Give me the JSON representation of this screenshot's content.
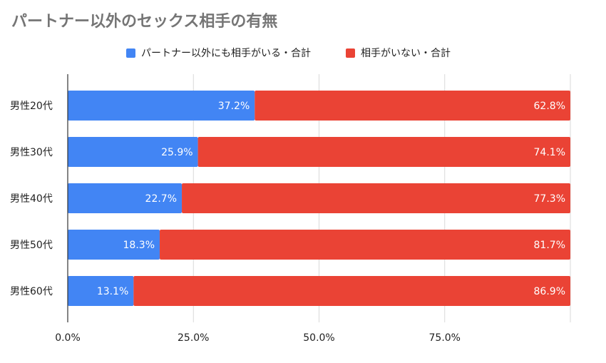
{
  "chart_data": {
    "type": "bar",
    "orientation": "horizontal",
    "stacked": true,
    "percent_stacked": true,
    "title": "パートナー以外のセックス相手の有無",
    "categories": [
      "男性20代",
      "男性30代",
      "男性40代",
      "男性50代",
      "男性60代"
    ],
    "series": [
      {
        "name": "パートナー以外にも相手がいる・合計",
        "color": "#4285f4",
        "values": [
          37.2,
          25.9,
          22.7,
          18.3,
          13.1
        ],
        "labels": [
          "37.2%",
          "25.9%",
          "22.7%",
          "18.3%",
          "13.1%"
        ]
      },
      {
        "name": "相手がいない・合計",
        "color": "#ea4335",
        "values": [
          62.8,
          74.1,
          77.3,
          81.7,
          86.9
        ],
        "labels": [
          "62.8%",
          "74.1%",
          "77.3%",
          "81.7%",
          "86.9%"
        ]
      }
    ],
    "xlim": [
      0,
      100
    ],
    "xticks": [
      0,
      25,
      50,
      75,
      100
    ],
    "xtick_labels": [
      "0.0%",
      "25.0%",
      "50.0%",
      "75.0%",
      ""
    ],
    "grid": true,
    "legend_position": "top-center"
  }
}
